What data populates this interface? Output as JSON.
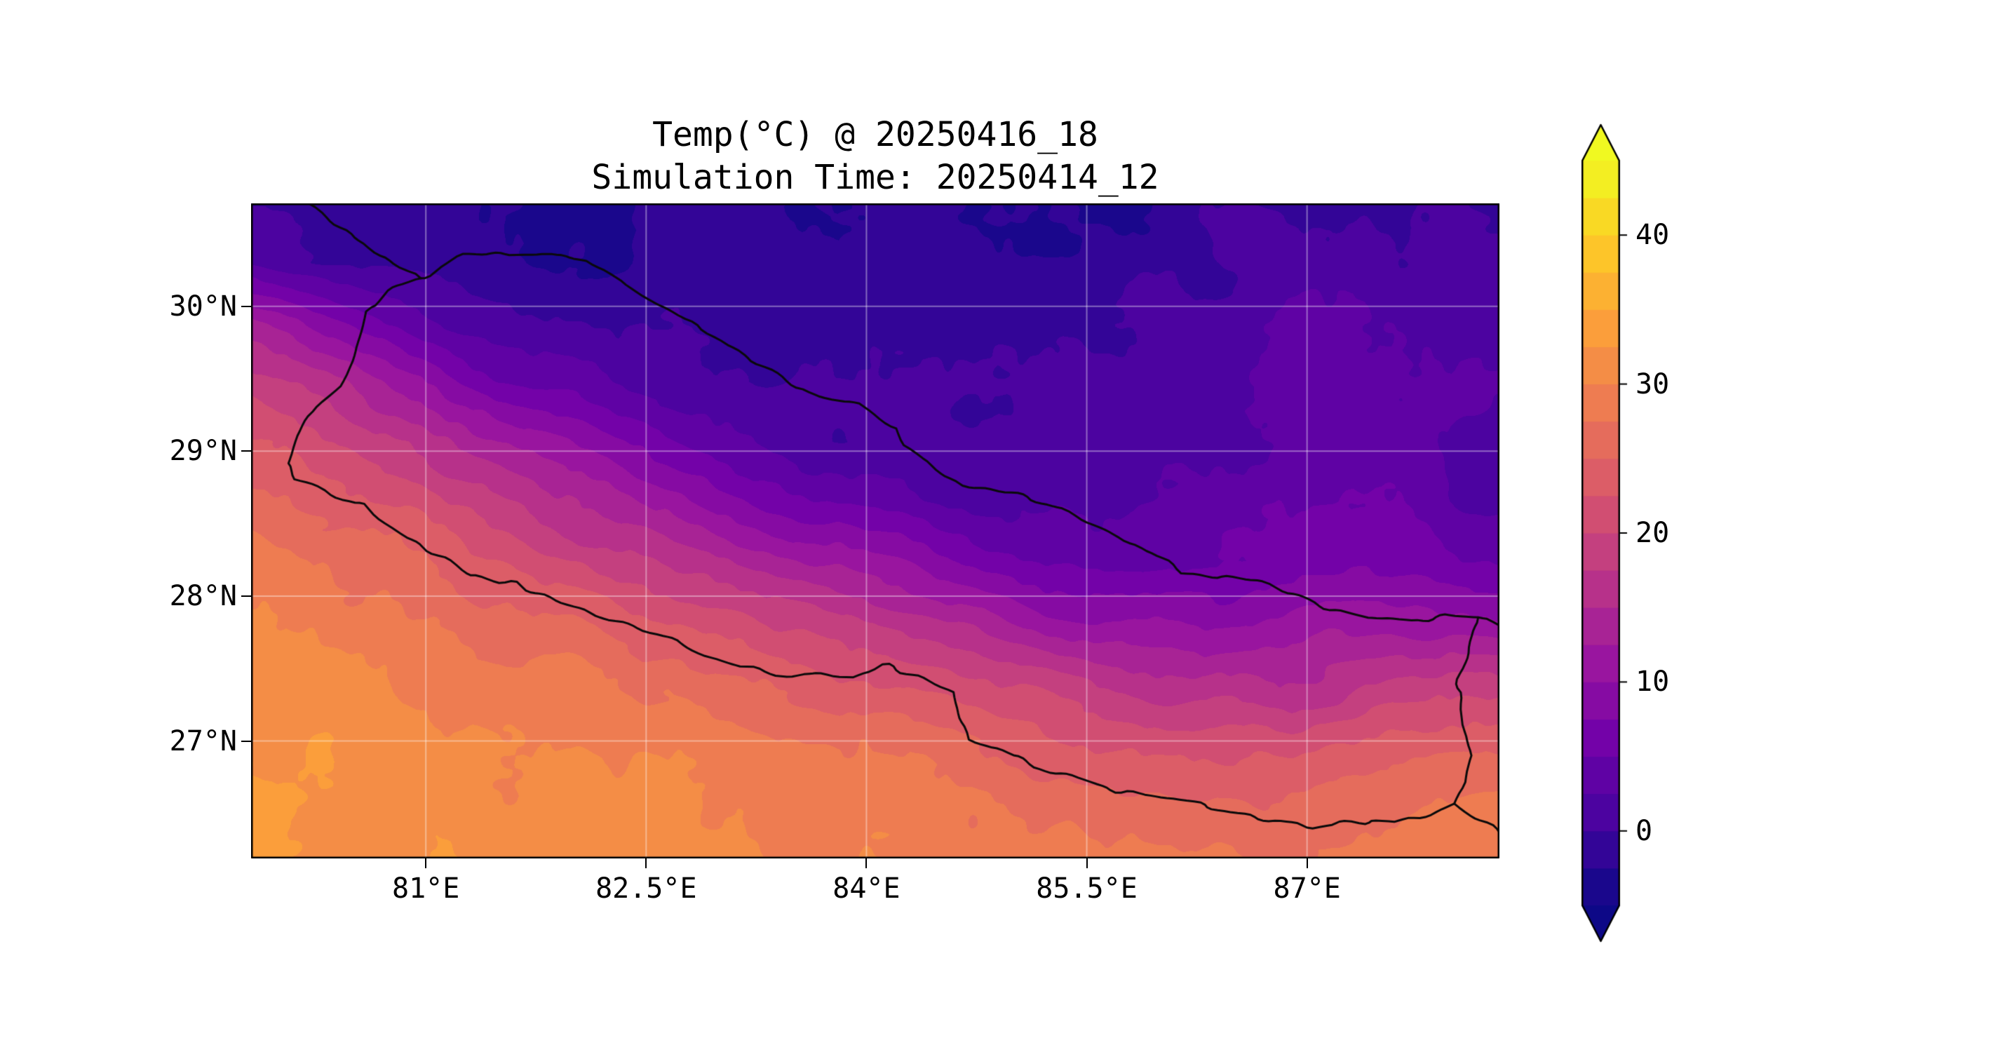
{
  "chart_data": {
    "type": "heatmap",
    "title": "Temp(°C) @ 20250416_18",
    "subtitle": "Simulation Time: 20250414_12",
    "xlabel": "",
    "ylabel": "",
    "grid_on": true,
    "lon_range": [
      79.81,
      88.31
    ],
    "lat_range": [
      26.19,
      30.71
    ],
    "x_axis": {
      "ticks": [
        {
          "value": 81.0,
          "label": "81°E"
        },
        {
          "value": 82.5,
          "label": "82.5°E"
        },
        {
          "value": 84.0,
          "label": "84°E"
        },
        {
          "value": 85.5,
          "label": "85.5°E"
        },
        {
          "value": 87.0,
          "label": "87°E"
        }
      ]
    },
    "y_axis": {
      "ticks": [
        {
          "value": 30.0,
          "label": "30°N"
        },
        {
          "value": 29.0,
          "label": "29°N"
        },
        {
          "value": 28.0,
          "label": "28°N"
        },
        {
          "value": 27.0,
          "label": "27°N"
        }
      ]
    },
    "levels": {
      "min": -5,
      "max": 45,
      "step": 2.5
    },
    "colormap": {
      "name": "plasma",
      "stops": [
        "#0d0887",
        "#46039f",
        "#7201a8",
        "#9c179e",
        "#bd3786",
        "#d8576b",
        "#ed7953",
        "#fb9f3a",
        "#fdca26",
        "#f0f921"
      ]
    },
    "colorbar": {
      "extend": "both",
      "ticks": [
        {
          "value": 0,
          "label": "0"
        },
        {
          "value": 10,
          "label": "10"
        },
        {
          "value": 20,
          "label": "20"
        },
        {
          "value": 30,
          "label": "30"
        },
        {
          "value": 40,
          "label": "40"
        }
      ]
    },
    "grid": {
      "lon": [
        79.81,
        80.31,
        80.81,
        81.31,
        81.81,
        82.31,
        82.81,
        83.31,
        83.81,
        84.31,
        84.81,
        85.31,
        85.81,
        86.31,
        86.81,
        87.31,
        87.81,
        88.31
      ],
      "lat": [
        30.71,
        30.3,
        29.89,
        29.48,
        29.07,
        28.66,
        28.25,
        27.84,
        27.43,
        27.02,
        26.61,
        26.19
      ],
      "temperature_c": [
        [
          -1,
          -1,
          -2,
          -2,
          -3,
          -3,
          -2,
          -2,
          -2,
          -1,
          -2,
          -2,
          -2,
          -1,
          -1,
          -1,
          -1,
          -1
        ],
        [
          2,
          0,
          -1,
          -2,
          -3,
          -3,
          -2,
          -2,
          -2,
          -1,
          -2,
          -2,
          -1,
          0,
          1,
          1,
          0,
          0
        ],
        [
          14,
          9,
          4,
          1,
          0,
          -1,
          -1,
          -2,
          -1,
          -1,
          -1,
          -1,
          0,
          1,
          2,
          3,
          2,
          1
        ],
        [
          20,
          16,
          11,
          7,
          4,
          2,
          0,
          -1,
          0,
          0,
          0,
          0,
          1,
          2,
          3,
          4,
          3,
          2
        ],
        [
          24,
          21,
          18,
          14,
          10,
          7,
          4,
          2,
          1,
          1,
          1,
          1,
          1,
          2,
          3,
          4,
          3,
          2
        ],
        [
          27,
          25,
          22,
          19,
          16,
          13,
          10,
          7,
          5,
          3,
          2,
          2,
          2,
          3,
          4,
          4,
          4,
          3
        ],
        [
          30,
          28,
          26,
          23,
          21,
          18,
          16,
          14,
          12,
          9,
          7,
          5,
          4,
          4,
          5,
          6,
          6,
          5
        ],
        [
          31,
          30,
          29,
          27,
          25,
          23,
          21,
          19,
          18,
          16,
          14,
          11,
          9,
          9,
          10,
          11,
          10,
          9
        ],
        [
          32,
          31,
          30,
          29,
          28,
          27,
          26,
          25,
          23,
          21,
          20,
          18,
          16,
          15,
          15,
          16,
          17,
          18
        ],
        [
          32,
          32,
          31,
          31,
          30,
          29,
          29,
          28,
          27,
          26,
          25,
          23,
          22,
          21,
          21,
          22,
          23,
          24
        ],
        [
          33,
          32,
          32,
          31,
          31,
          30,
          30,
          29,
          29,
          28,
          28,
          27,
          26,
          25,
          25,
          26,
          27,
          28
        ],
        [
          33,
          33,
          32,
          32,
          31,
          31,
          30,
          30,
          30,
          29,
          29,
          29,
          28,
          28,
          27,
          28,
          29,
          29
        ]
      ]
    },
    "borders": {
      "nepal": [
        [
          80.06,
          28.92
        ],
        [
          80.12,
          29.1
        ],
        [
          80.25,
          29.32
        ],
        [
          80.4,
          29.46
        ],
        [
          80.52,
          29.7
        ],
        [
          80.57,
          29.95
        ],
        [
          80.75,
          30.1
        ],
        [
          80.95,
          30.18
        ],
        [
          81.25,
          30.35
        ],
        [
          81.55,
          30.37
        ],
        [
          81.85,
          30.36
        ],
        [
          82.1,
          30.32
        ],
        [
          82.45,
          30.1
        ],
        [
          82.7,
          29.95
        ],
        [
          83.0,
          29.78
        ],
        [
          83.3,
          29.58
        ],
        [
          83.6,
          29.4
        ],
        [
          83.95,
          29.32
        ],
        [
          84.2,
          29.15
        ],
        [
          84.25,
          29.04
        ],
        [
          84.65,
          28.75
        ],
        [
          85.1,
          28.68
        ],
        [
          85.35,
          28.6
        ],
        [
          85.7,
          28.4
        ],
        [
          85.95,
          28.3
        ],
        [
          86.15,
          28.16
        ],
        [
          86.55,
          28.11
        ],
        [
          86.75,
          28.08
        ],
        [
          87.05,
          27.95
        ],
        [
          87.4,
          27.86
        ],
        [
          87.7,
          27.82
        ],
        [
          87.95,
          27.88
        ],
        [
          88.15,
          27.87
        ],
        [
          88.1,
          27.6
        ],
        [
          88.02,
          27.35
        ],
        [
          88.05,
          27.12
        ],
        [
          88.12,
          26.9
        ],
        [
          88.08,
          26.72
        ],
        [
          88.02,
          26.58
        ],
        [
          87.85,
          26.5
        ],
        [
          87.6,
          26.42
        ],
        [
          87.3,
          26.45
        ],
        [
          87.05,
          26.42
        ],
        [
          86.75,
          26.45
        ],
        [
          86.45,
          26.52
        ],
        [
          86.1,
          26.6
        ],
        [
          85.75,
          26.65
        ],
        [
          85.4,
          26.75
        ],
        [
          85.15,
          26.8
        ],
        [
          84.95,
          26.92
        ],
        [
          84.68,
          27.02
        ],
        [
          84.62,
          27.2
        ],
        [
          84.6,
          27.34
        ],
        [
          84.35,
          27.45
        ],
        [
          84.1,
          27.52
        ],
        [
          83.9,
          27.45
        ],
        [
          83.6,
          27.46
        ],
        [
          83.38,
          27.45
        ],
        [
          83.15,
          27.52
        ],
        [
          82.9,
          27.6
        ],
        [
          82.7,
          27.7
        ],
        [
          82.45,
          27.78
        ],
        [
          82.1,
          27.9
        ],
        [
          81.85,
          27.98
        ],
        [
          81.6,
          28.08
        ],
        [
          81.3,
          28.15
        ],
        [
          81.05,
          28.3
        ],
        [
          80.85,
          28.42
        ],
        [
          80.58,
          28.62
        ],
        [
          80.35,
          28.7
        ],
        [
          80.12,
          28.8
        ],
        [
          80.06,
          28.92
        ]
      ],
      "other_lines": [
        [
          [
            80.2,
            30.71
          ],
          [
            80.45,
            30.52
          ],
          [
            80.62,
            30.4
          ],
          [
            80.8,
            30.28
          ],
          [
            80.95,
            30.18
          ]
        ],
        [
          [
            88.15,
            27.87
          ],
          [
            88.31,
            27.8
          ]
        ],
        [
          [
            88.02,
            26.58
          ],
          [
            88.18,
            26.45
          ],
          [
            88.31,
            26.36
          ]
        ]
      ]
    }
  }
}
